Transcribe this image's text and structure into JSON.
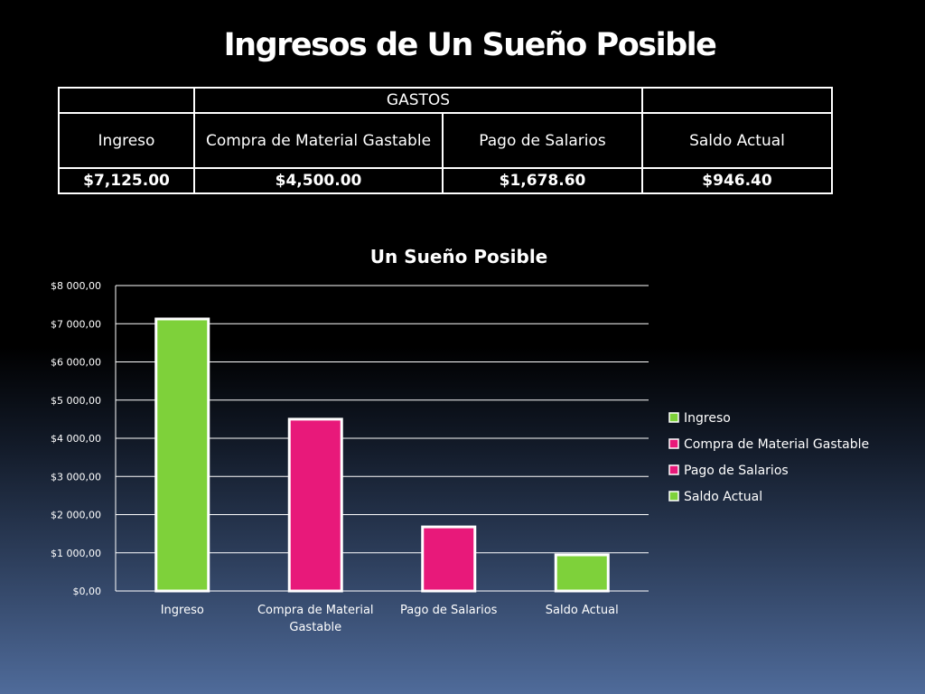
{
  "slide": {
    "title": "Ingresos de Un Sueño Posible"
  },
  "table": {
    "group_header": "GASTOS",
    "columns": [
      "Ingreso",
      "Compra de Material Gastable",
      "Pago de Salarios",
      "Saldo Actual"
    ],
    "values": [
      "$7,125.00",
      "$4,500.00",
      "$1,678.60",
      "$946.40"
    ]
  },
  "colors": {
    "green": "#7ed13a",
    "pink": "#e8197a"
  },
  "chart_data": {
    "type": "bar",
    "title": "Un Sueño Posible",
    "categories": [
      "Ingreso",
      "Compra de Material Gastable",
      "Pago de Salarios",
      "Saldo Actual"
    ],
    "values": [
      7125.0,
      4500.0,
      1678.6,
      946.4
    ],
    "bar_colors": [
      "#7ed13a",
      "#e8197a",
      "#e8197a",
      "#7ed13a"
    ],
    "ylim": [
      0,
      8000
    ],
    "yticks": [
      0,
      1000,
      2000,
      3000,
      4000,
      5000,
      6000,
      7000,
      8000
    ],
    "ytick_labels": [
      "$0,00",
      "$1 000,00",
      "$2 000,00",
      "$3 000,00",
      "$4 000,00",
      "$5 000,00",
      "$6 000,00",
      "$7 000,00",
      "$8 000,00"
    ],
    "grid": true,
    "legend": {
      "placement": "right",
      "entries": [
        "Ingreso",
        "Compra de Material Gastable",
        "Pago de Salarios",
        "Saldo Actual"
      ],
      "colors": [
        "#7ed13a",
        "#e8197a",
        "#e8197a",
        "#7ed13a"
      ]
    },
    "xlabel": "",
    "ylabel": ""
  }
}
